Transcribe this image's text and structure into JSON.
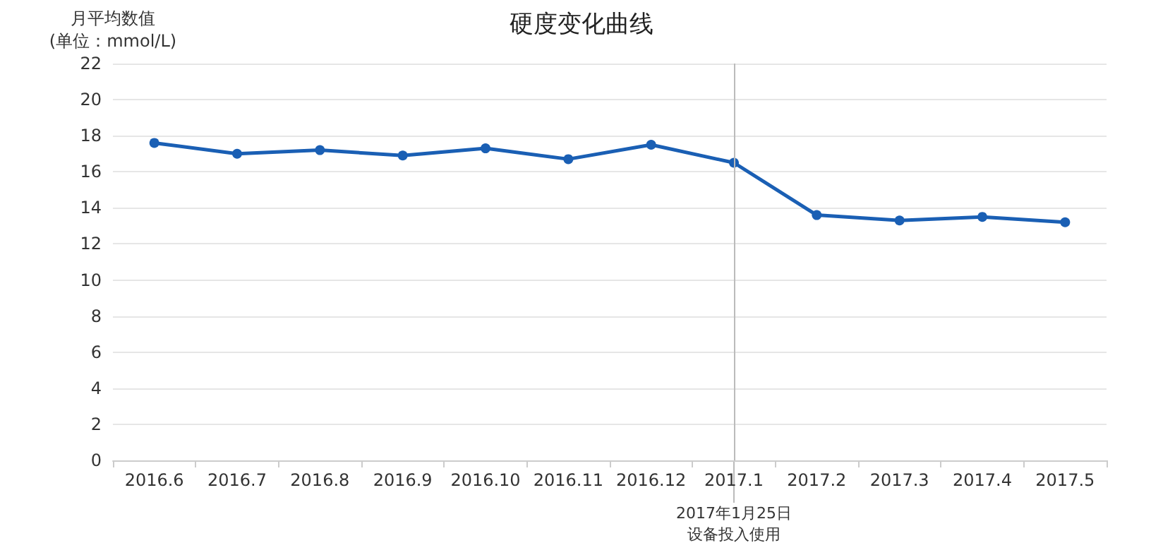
{
  "chart_data": {
    "type": "line",
    "title": "硬度变化曲线",
    "ylabel": "月平均数值\n(单位：mmol/L)",
    "categories": [
      "2016.6",
      "2016.7",
      "2016.8",
      "2016.9",
      "2016.10",
      "2016.11",
      "2016.12",
      "2017.1",
      "2017.2",
      "2017.3",
      "2017.4",
      "2017.5"
    ],
    "series": [
      {
        "color": "#1a5fb4",
        "values": [
          17.6,
          17.0,
          17.2,
          16.9,
          17.3,
          16.7,
          17.5,
          16.5,
          13.6,
          13.3,
          13.5,
          13.2
        ]
      }
    ],
    "ylim": [
      0,
      22
    ],
    "yticks": [
      0,
      2,
      4,
      6,
      8,
      10,
      12,
      14,
      16,
      18,
      20,
      22
    ],
    "ref_lines": [
      {
        "axis": "x",
        "value": "2017.1",
        "label": "2017年1月25日设备投入使用",
        "color": "#bbbbbb"
      }
    ],
    "grid": "y",
    "marker": "circle",
    "line_style": "solid"
  }
}
